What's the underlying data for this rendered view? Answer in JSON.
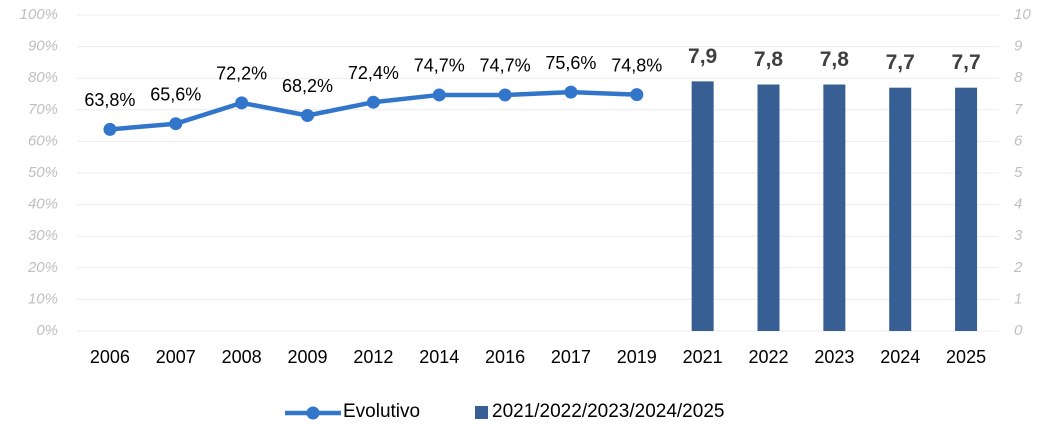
{
  "chart_data": {
    "type": "combo",
    "categories": [
      "2006",
      "2007",
      "2008",
      "2009",
      "2012",
      "2014",
      "2016",
      "2017",
      "2019",
      "2021",
      "2022",
      "2023",
      "2024",
      "2025"
    ],
    "series": [
      {
        "name": "Evolutivo",
        "type": "line",
        "color": "#3276cc",
        "values": [
          63.8,
          65.6,
          72.2,
          68.2,
          72.4,
          74.7,
          74.7,
          75.6,
          74.8,
          null,
          null,
          null,
          null,
          null
        ],
        "value_labels": [
          "63,8%",
          "65,6%",
          "72,2%",
          "68,2%",
          "72,4%",
          "74,7%",
          "74,7%",
          "75,6%",
          "74,8%",
          null,
          null,
          null,
          null,
          null
        ]
      },
      {
        "name": "2021/2022/2023/2024/2025",
        "type": "bar",
        "axis": "y2",
        "color": "#375f94",
        "values": [
          null,
          null,
          null,
          null,
          null,
          null,
          null,
          null,
          null,
          7.9,
          7.8,
          7.8,
          7.7,
          7.7
        ],
        "value_labels": [
          null,
          null,
          null,
          null,
          null,
          null,
          null,
          null,
          null,
          "7,9",
          "7,8",
          "7,8",
          "7,7",
          "7,7"
        ]
      }
    ],
    "ylim": [
      0,
      100
    ],
    "yticks": [
      {
        "value": 0,
        "label": "0%"
      },
      {
        "value": 10,
        "label": "10%"
      },
      {
        "value": 20,
        "label": "20%"
      },
      {
        "value": 30,
        "label": "30%"
      },
      {
        "value": 40,
        "label": "40%"
      },
      {
        "value": 50,
        "label": "50%"
      },
      {
        "value": 60,
        "label": "60%"
      },
      {
        "value": 70,
        "label": "70%"
      },
      {
        "value": 80,
        "label": "80%"
      },
      {
        "value": 90,
        "label": "90%"
      },
      {
        "value": 100,
        "label": "100%"
      }
    ],
    "y2lim": [
      0,
      10
    ],
    "y2ticks": [
      0,
      1,
      2,
      3,
      4,
      5,
      6,
      7,
      8,
      9,
      10
    ],
    "grid": true,
    "legend": "bottom"
  }
}
